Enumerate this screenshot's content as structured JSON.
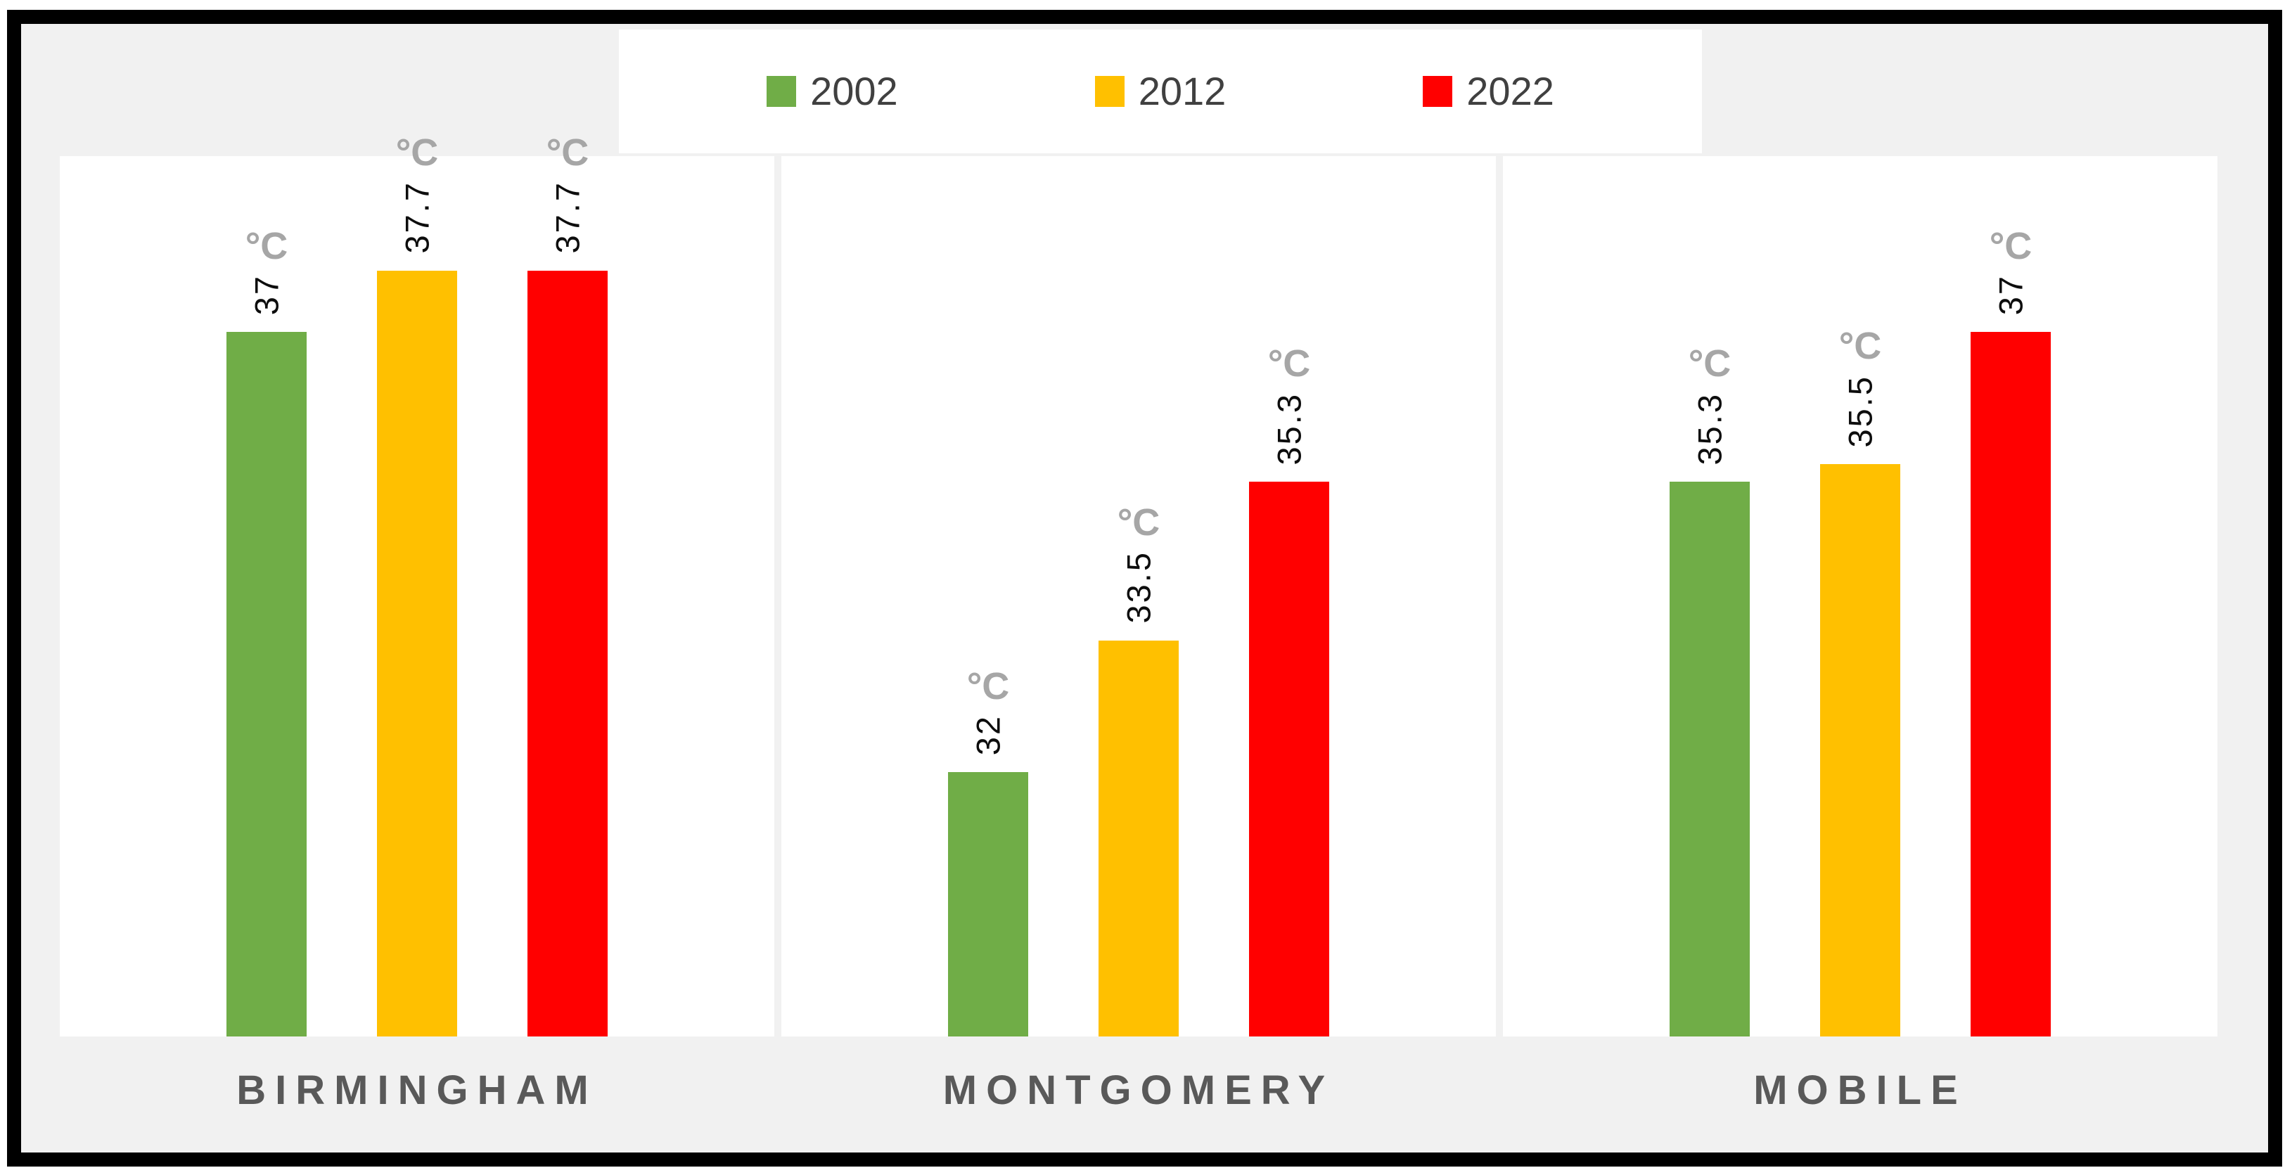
{
  "chart_data": {
    "type": "bar",
    "title": "",
    "unit": "°C",
    "categories": [
      "Birmingham",
      "Montgomery",
      "Mobile"
    ],
    "category_axis_labels": [
      "BIRMINGHAM",
      "MONTGOMERY",
      "MOBILE"
    ],
    "series": [
      {
        "name": "2002",
        "color": "#70AD47",
        "values": [
          37,
          32,
          35.3
        ]
      },
      {
        "name": "2012",
        "color": "#FFC000",
        "values": [
          37.7,
          33.5,
          35.5
        ]
      },
      {
        "name": "2022",
        "color": "#FF0000",
        "values": [
          37.7,
          35.3,
          37
        ]
      }
    ],
    "data_labels": {
      "visible": true,
      "number_rotation_deg": -90,
      "number_color": "#0d0d0d",
      "unit_text": "°C",
      "unit_color": "#a6a6a6"
    },
    "value_axis": {
      "min": 29,
      "max": 39,
      "labels_visible": false,
      "gridlines": false
    },
    "legend": {
      "position": "top",
      "entries": [
        "2002",
        "2012",
        "2022"
      ]
    },
    "layout_hints": {
      "panel_background": "#ffffff",
      "chart_background": "#f1f1f1",
      "frame_border_color": "#000000",
      "category_label_color": "#595959",
      "legend_text_color": "#404040"
    }
  }
}
